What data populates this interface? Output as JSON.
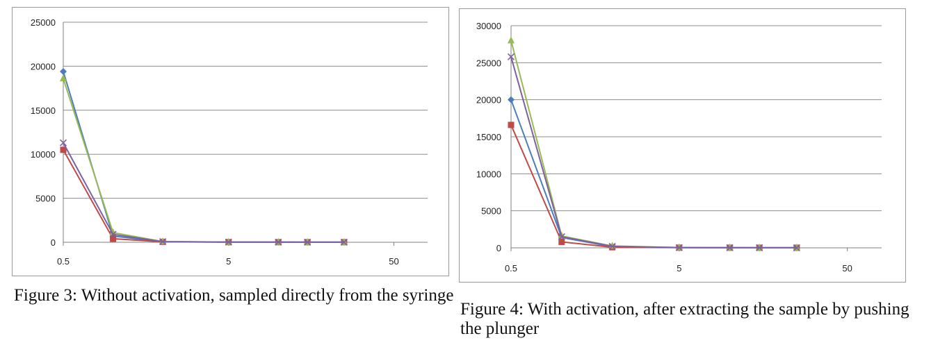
{
  "colors": {
    "series_blue": "#4a7ebb",
    "series_red": "#be4b48",
    "series_green": "#98b954",
    "series_purple": "#7d60a0",
    "gridline": "#8c8c8c"
  },
  "chart_data": [
    {
      "type": "line",
      "x_scale": "log",
      "x": [
        0.5,
        1,
        2,
        5,
        10,
        15,
        25
      ],
      "xticks": [
        0.5,
        5,
        50
      ],
      "xlim": [
        0.5,
        80
      ],
      "ylim": [
        0,
        25000
      ],
      "yticks": [
        0,
        5000,
        10000,
        15000,
        20000,
        25000
      ],
      "grid": true,
      "series": [
        {
          "name": "",
          "color": "#4a7ebb",
          "marker": "diamond",
          "values": [
            19400,
            700,
            60,
            20,
            15,
            10,
            10
          ]
        },
        {
          "name": "",
          "color": "#be4b48",
          "marker": "square",
          "values": [
            10500,
            400,
            50,
            15,
            10,
            10,
            10
          ]
        },
        {
          "name": "",
          "color": "#98b954",
          "marker": "triangle",
          "values": [
            18600,
            1100,
            80,
            20,
            15,
            10,
            10
          ]
        },
        {
          "name": "",
          "color": "#7d60a0",
          "marker": "x",
          "values": [
            11300,
            900,
            70,
            20,
            15,
            10,
            10
          ]
        }
      ],
      "caption": "Figure 3: Without activation, sampled directly from the syringe"
    },
    {
      "type": "line",
      "x_scale": "log",
      "x": [
        0.5,
        1,
        2,
        5,
        10,
        15,
        25
      ],
      "xticks": [
        0.5,
        5,
        50
      ],
      "xlim": [
        0.5,
        80
      ],
      "ylim": [
        0,
        30000
      ],
      "yticks": [
        0,
        5000,
        10000,
        15000,
        20000,
        25000,
        30000
      ],
      "grid": true,
      "series": [
        {
          "name": "",
          "color": "#4a7ebb",
          "marker": "diamond",
          "values": [
            20000,
            1400,
            150,
            30,
            20,
            15,
            10
          ]
        },
        {
          "name": "",
          "color": "#be4b48",
          "marker": "square",
          "values": [
            16600,
            800,
            80,
            20,
            15,
            10,
            10
          ]
        },
        {
          "name": "",
          "color": "#98b954",
          "marker": "triangle",
          "values": [
            28000,
            1600,
            250,
            40,
            20,
            15,
            10
          ]
        },
        {
          "name": "",
          "color": "#7d60a0",
          "marker": "x",
          "values": [
            25800,
            1500,
            200,
            30,
            20,
            15,
            10
          ]
        }
      ],
      "caption": "Figure 4: With activation, after extracting the sample by pushing the plunger"
    }
  ]
}
